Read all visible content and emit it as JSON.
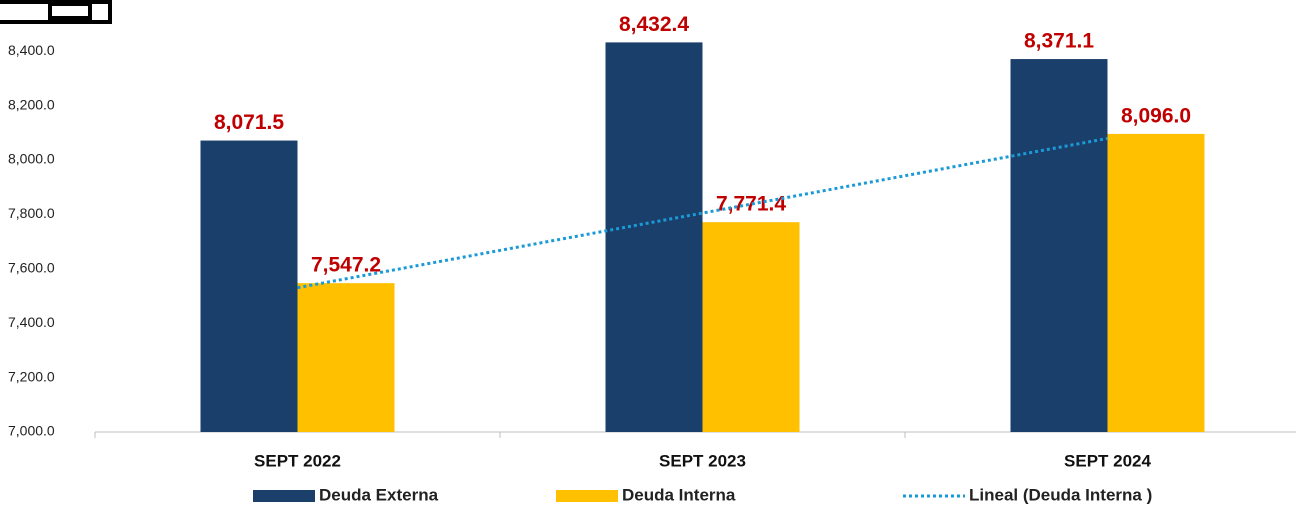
{
  "chart_data": {
    "type": "bar",
    "categories": [
      "SEPT 2022",
      "SEPT 2023",
      "SEPT 2024"
    ],
    "series": [
      {
        "name": "Deuda Externa",
        "color": "#1b3f6b",
        "values": [
          8071.5,
          8432.4,
          8371.1
        ],
        "value_labels": [
          "8,071.5",
          "8,432.4",
          "8,371.1"
        ]
      },
      {
        "name": "Deuda Interna",
        "color": "#ffc000",
        "values": [
          7547.2,
          7771.4,
          8096.0
        ],
        "value_labels": [
          "7,547.2",
          "7,771.4",
          "8,096.0"
        ]
      },
      {
        "name": "Lineal (Deuda Interna )",
        "type": "line",
        "color": "#1a9ad6",
        "values": [
          7530.5,
          7804.9,
          8079.3
        ]
      }
    ],
    "label_color": "#c00000",
    "ylim": [
      7000,
      8500
    ],
    "yticks": [
      {
        "value": 7000,
        "label": "7,000.0"
      },
      {
        "value": 7200,
        "label": "7,200.0"
      },
      {
        "value": 7400,
        "label": "7,400.0"
      },
      {
        "value": 7600,
        "label": "7,600.0"
      },
      {
        "value": 7800,
        "label": "7,800.0"
      },
      {
        "value": 8000,
        "label": "8,000.0"
      },
      {
        "value": 8200,
        "label": "8,200.0"
      },
      {
        "value": 8400,
        "label": "8,400.0"
      }
    ],
    "grid": false
  }
}
